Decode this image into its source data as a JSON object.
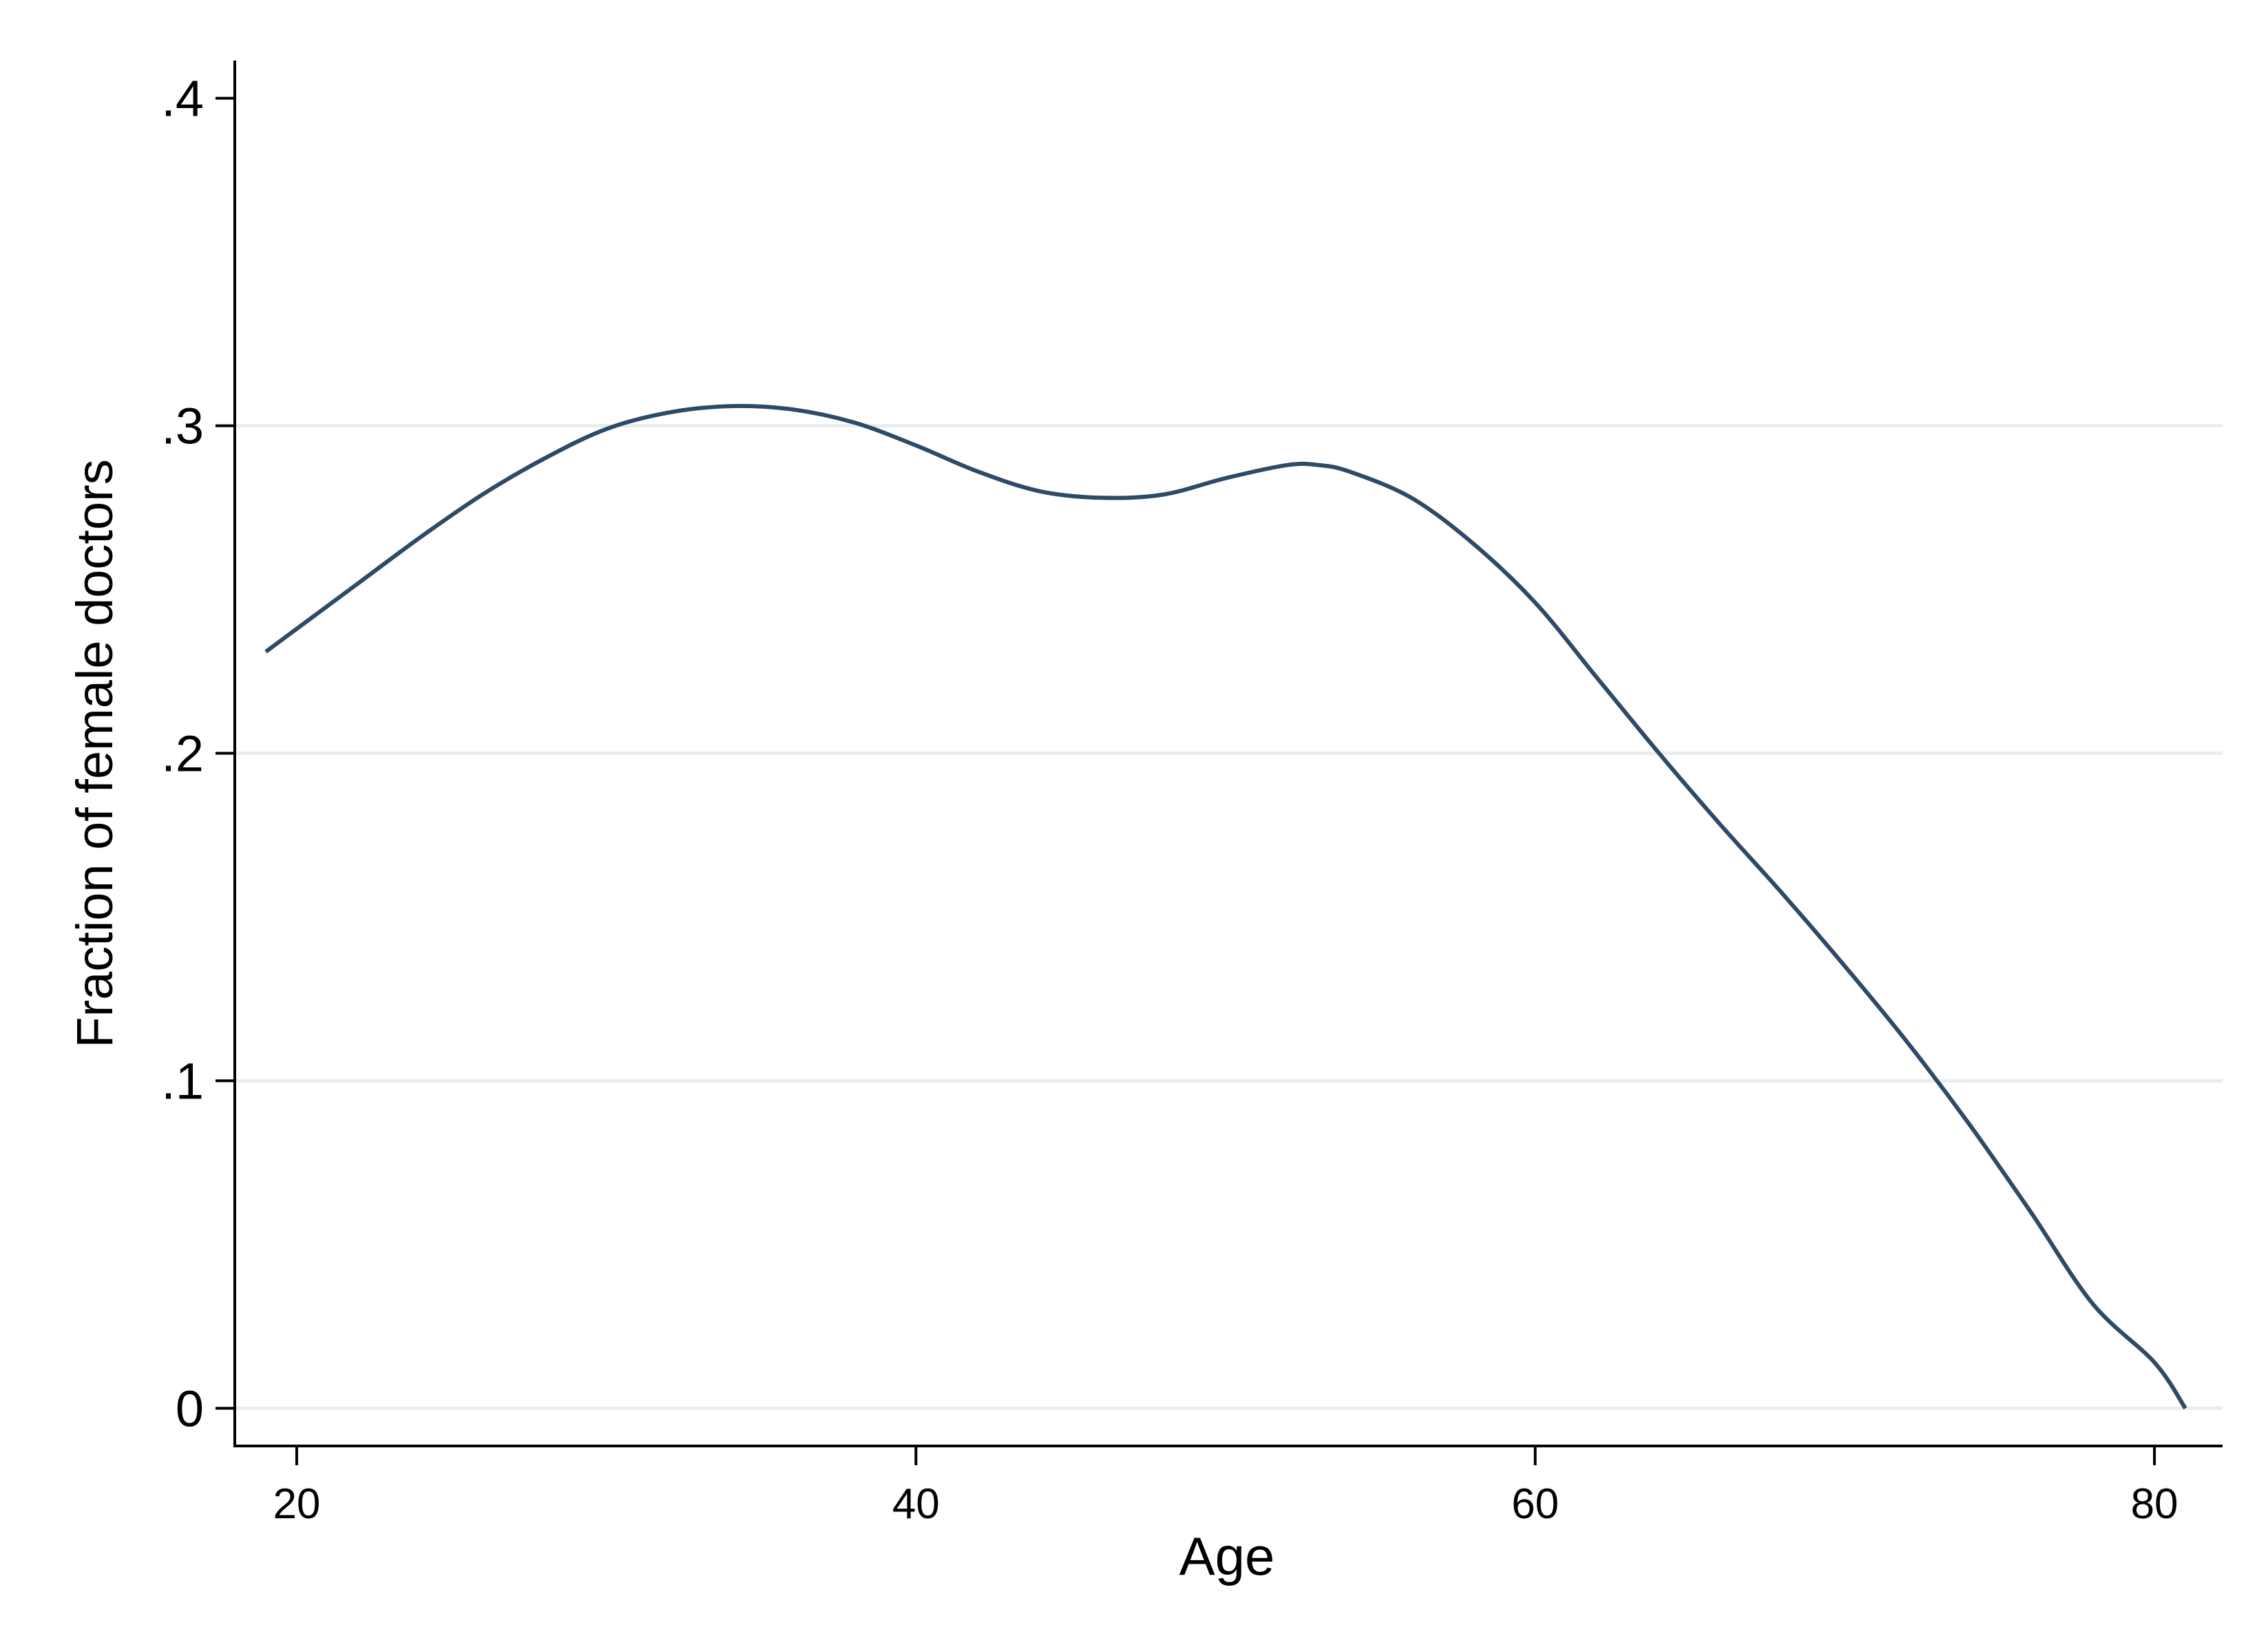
{
  "chart_data": {
    "type": "line",
    "title": "",
    "xlabel": "Age",
    "ylabel": "Fraction of female doctors",
    "xlim": [
      18,
      82.2
    ],
    "ylim": [
      -0.0115,
      0.4115
    ],
    "x_ticks": [
      20,
      40,
      60,
      80
    ],
    "x_tick_labels": [
      "20",
      "40",
      "60",
      "80"
    ],
    "y_ticks": [
      0,
      0.1,
      0.2,
      0.3,
      0.4
    ],
    "y_tick_labels": [
      "0",
      ".1",
      ".2",
      ".3",
      ".4"
    ],
    "grid": "horizontal",
    "legend": "none",
    "colors": {
      "line": "#2d4a66",
      "grid": "#e8eeee",
      "axis": "#000000"
    },
    "series": [
      {
        "x": [
          19,
          20,
          22,
          24,
          26,
          28,
          30,
          32,
          34,
          36,
          38,
          40,
          42,
          44,
          46,
          48,
          50,
          52,
          53,
          54,
          56,
          58,
          60,
          62,
          64,
          66,
          68,
          70,
          72,
          74,
          76,
          78,
          80,
          81
        ],
        "y": [
          0.231,
          0.238,
          0.252,
          0.266,
          0.279,
          0.29,
          0.299,
          0.304,
          0.306,
          0.305,
          0.301,
          0.294,
          0.286,
          0.28,
          0.278,
          0.279,
          0.284,
          0.288,
          0.288,
          0.286,
          0.278,
          0.264,
          0.246,
          0.223,
          0.2,
          0.178,
          0.157,
          0.135,
          0.112,
          0.087,
          0.06,
          0.032,
          0.014,
          0.0
        ]
      }
    ]
  }
}
